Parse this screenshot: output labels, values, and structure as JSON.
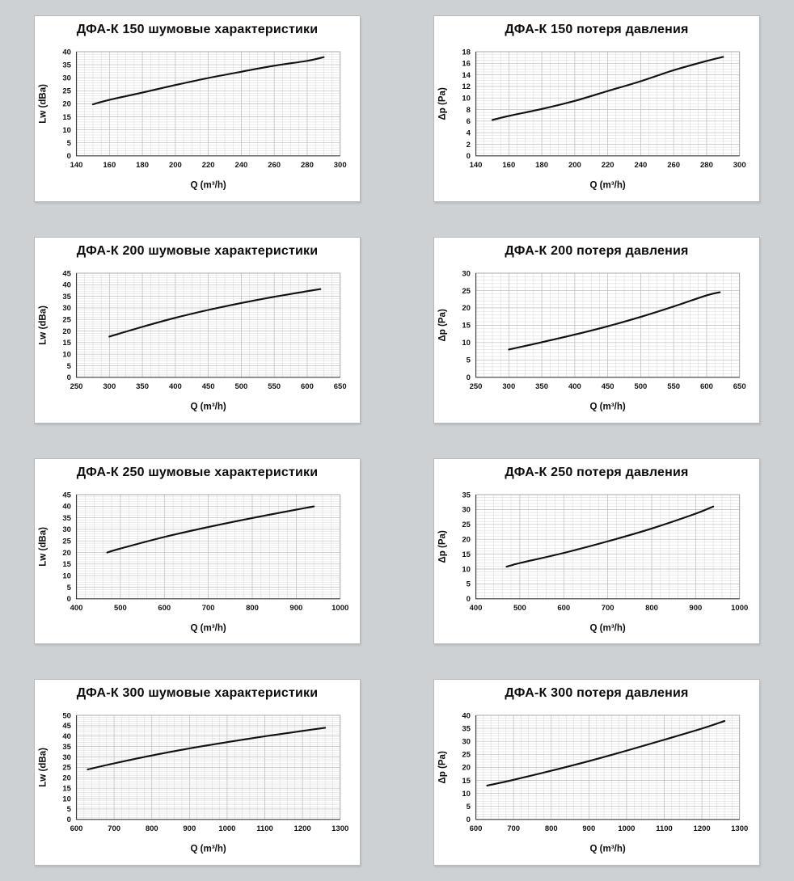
{
  "page": {
    "background_color": "#cdd1d3",
    "panel_background": "#ffffff",
    "panel_border_color": "#b6babc",
    "grid_minor_color": "#d6d6d6",
    "grid_major_color": "#bcbcbc",
    "axis_color": "#3a3a3a",
    "frame_color": "#9d9d9d",
    "text_color": "#0d0d0d",
    "curve_color": "#111111"
  },
  "chart_data": [
    {
      "type": "line",
      "title": "ДФА-К 150 шумовые характеристики",
      "xlabel": "Q (m³/h)",
      "ylabel": "Lw (dBa)",
      "xlim": [
        140,
        300
      ],
      "ylim": [
        0,
        40
      ],
      "xticks": [
        "140",
        "160",
        "180",
        "200",
        "220",
        "240",
        "260",
        "280",
        "300"
      ],
      "yticks": [
        "0",
        "5",
        "10",
        "15",
        "20",
        "25",
        "30",
        "35",
        "40"
      ],
      "x_minor_div": 4,
      "y_minor_div": 5,
      "grid": true,
      "legend": "none",
      "points": [
        [
          150,
          19.8
        ],
        [
          160,
          21.5
        ],
        [
          180,
          24.3
        ],
        [
          200,
          27.2
        ],
        [
          220,
          29.9
        ],
        [
          240,
          32.3
        ],
        [
          260,
          34.6
        ],
        [
          280,
          36.5
        ],
        [
          290,
          37.9
        ]
      ],
      "line_color": "#111111"
    },
    {
      "type": "line",
      "title": "ДФА-К 150 потеря давления",
      "xlabel": "Q (m³/h)",
      "ylabel": "Δp (Pa)",
      "xlim": [
        140,
        300
      ],
      "ylim": [
        0,
        18
      ],
      "xticks": [
        "140",
        "160",
        "180",
        "200",
        "220",
        "240",
        "260",
        "280",
        "300"
      ],
      "yticks": [
        "0",
        "2",
        "4",
        "6",
        "8",
        "10",
        "12",
        "14",
        "16",
        "18"
      ],
      "x_minor_div": 4,
      "y_minor_div": 4,
      "grid": true,
      "legend": "none",
      "points": [
        [
          150,
          6.2
        ],
        [
          160,
          6.9
        ],
        [
          180,
          8.1
        ],
        [
          200,
          9.5
        ],
        [
          220,
          11.2
        ],
        [
          240,
          12.9
        ],
        [
          260,
          14.8
        ],
        [
          280,
          16.4
        ],
        [
          290,
          17.1
        ]
      ],
      "line_color": "#111111"
    },
    {
      "type": "line",
      "title": "ДФА-К 200 шумовые характеристики",
      "xlabel": "Q (m³/h)",
      "ylabel": "Lw (dBa)",
      "xlim": [
        250,
        650
      ],
      "ylim": [
        0,
        45
      ],
      "xticks": [
        "250",
        "300",
        "350",
        "400",
        "450",
        "500",
        "550",
        "600",
        "650"
      ],
      "yticks": [
        "0",
        "5",
        "10",
        "15",
        "20",
        "25",
        "30",
        "35",
        "40",
        "45"
      ],
      "x_minor_div": 4,
      "y_minor_div": 5,
      "grid": true,
      "legend": "none",
      "points": [
        [
          300,
          17.6
        ],
        [
          350,
          21.8
        ],
        [
          400,
          25.7
        ],
        [
          450,
          29.1
        ],
        [
          500,
          32.1
        ],
        [
          550,
          34.8
        ],
        [
          600,
          37.2
        ],
        [
          620,
          38.1
        ]
      ],
      "line_color": "#111111"
    },
    {
      "type": "line",
      "title": "ДФА-К 200 потеря давления",
      "xlabel": "Q (m³/h)",
      "ylabel": "Δp (Pa)",
      "xlim": [
        250,
        650
      ],
      "ylim": [
        0,
        30
      ],
      "xticks": [
        "250",
        "300",
        "350",
        "400",
        "450",
        "500",
        "550",
        "600",
        "650"
      ],
      "yticks": [
        "0",
        "5",
        "10",
        "15",
        "20",
        "25",
        "30"
      ],
      "x_minor_div": 4,
      "y_minor_div": 5,
      "grid": true,
      "legend": "none",
      "points": [
        [
          300,
          8
        ],
        [
          350,
          10.1
        ],
        [
          400,
          12.3
        ],
        [
          450,
          14.7
        ],
        [
          500,
          17.4
        ],
        [
          550,
          20.4
        ],
        [
          600,
          23.6
        ],
        [
          620,
          24.5
        ]
      ],
      "line_color": "#111111"
    },
    {
      "type": "line",
      "title": "ДФА-К 250 шумовые характеристики",
      "xlabel": "Q (m³/h)",
      "ylabel": "Lw (dBa)",
      "xlim": [
        400,
        1000
      ],
      "ylim": [
        0,
        45
      ],
      "xticks": [
        "400",
        "500",
        "600",
        "700",
        "800",
        "900",
        "1000"
      ],
      "yticks": [
        "0",
        "5",
        "10",
        "15",
        "20",
        "25",
        "30",
        "35",
        "40",
        "45"
      ],
      "x_minor_div": 5,
      "y_minor_div": 5,
      "grid": true,
      "legend": "none",
      "points": [
        [
          470,
          20
        ],
        [
          500,
          21.7
        ],
        [
          600,
          26.7
        ],
        [
          700,
          31
        ],
        [
          800,
          34.9
        ],
        [
          900,
          38.5
        ],
        [
          940,
          39.9
        ]
      ],
      "line_color": "#111111"
    },
    {
      "type": "line",
      "title": "ДФА-К 250 потеря давления",
      "xlabel": "Q (m³/h)",
      "ylabel": "Δp (Pa)",
      "xlim": [
        400,
        1000
      ],
      "ylim": [
        0,
        35
      ],
      "xticks": [
        "400",
        "500",
        "600",
        "700",
        "800",
        "900",
        "1000"
      ],
      "yticks": [
        "0",
        "5",
        "10",
        "15",
        "20",
        "25",
        "30",
        "35"
      ],
      "x_minor_div": 5,
      "y_minor_div": 5,
      "grid": true,
      "legend": "none",
      "points": [
        [
          470,
          10.8
        ],
        [
          480,
          11.2
        ],
        [
          500,
          12
        ],
        [
          600,
          15.4
        ],
        [
          700,
          19.3
        ],
        [
          800,
          23.6
        ],
        [
          900,
          28.6
        ],
        [
          940,
          31
        ]
      ],
      "line_color": "#111111"
    },
    {
      "type": "line",
      "title": "ДФА-К 300 шумовые характеристики",
      "xlabel": "Q (m³/h)",
      "ylabel": "Lw (dBa)",
      "xlim": [
        600,
        1300
      ],
      "ylim": [
        0,
        50
      ],
      "xticks": [
        "600",
        "700",
        "800",
        "900",
        "1000",
        "1100",
        "1200",
        "1300"
      ],
      "yticks": [
        "0",
        "5",
        "10",
        "15",
        "20",
        "25",
        "30",
        "35",
        "40",
        "45",
        "50"
      ],
      "x_minor_div": 5,
      "y_minor_div": 5,
      "grid": true,
      "legend": "none",
      "points": [
        [
          630,
          24
        ],
        [
          700,
          26.9
        ],
        [
          800,
          30.7
        ],
        [
          900,
          34.1
        ],
        [
          1000,
          37.1
        ],
        [
          1100,
          39.9
        ],
        [
          1200,
          42.5
        ],
        [
          1260,
          44
        ]
      ],
      "line_color": "#111111"
    },
    {
      "type": "line",
      "title": "ДФА-К 300 потеря давления",
      "xlabel": "Q (m³/h)",
      "ylabel": "Δp (Pa)",
      "xlim": [
        600,
        1300
      ],
      "ylim": [
        0,
        40
      ],
      "xticks": [
        "600",
        "700",
        "800",
        "900",
        "1000",
        "1100",
        "1200",
        "1300"
      ],
      "yticks": [
        "0",
        "5",
        "10",
        "15",
        "20",
        "25",
        "30",
        "35",
        "40"
      ],
      "x_minor_div": 5,
      "y_minor_div": 5,
      "grid": true,
      "legend": "none",
      "points": [
        [
          630,
          13
        ],
        [
          700,
          15.2
        ],
        [
          800,
          18.7
        ],
        [
          900,
          22.4
        ],
        [
          1000,
          26.4
        ],
        [
          1100,
          30.6
        ],
        [
          1200,
          34.9
        ],
        [
          1260,
          37.8
        ]
      ],
      "line_color": "#111111"
    }
  ]
}
